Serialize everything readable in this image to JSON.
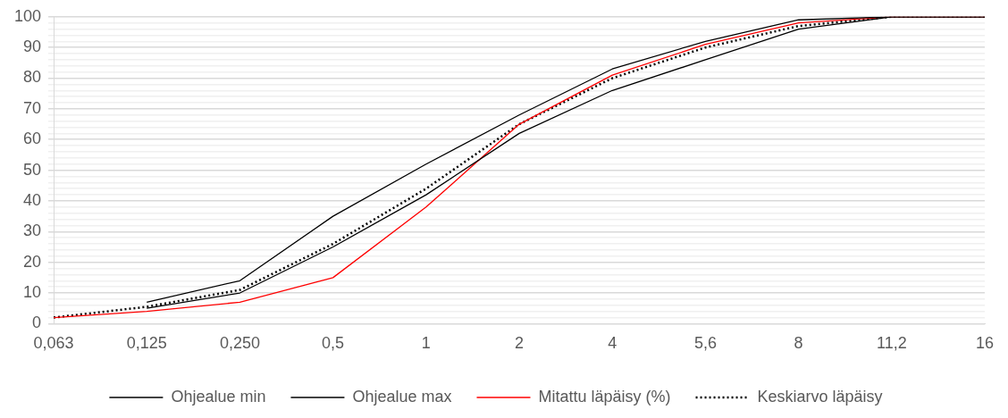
{
  "chart_data": {
    "type": "line",
    "categories": [
      "0,063",
      "0,125",
      "0,250",
      "0,5",
      "1",
      "2",
      "4",
      "5,6",
      "8",
      "11,2",
      "16"
    ],
    "series": [
      {
        "name": "Ohjealue min",
        "color": "#000000",
        "line_style": "solid",
        "values": [
          null,
          5,
          10,
          25,
          42,
          62,
          76,
          86,
          96,
          100,
          100
        ]
      },
      {
        "name": "Ohjealue max",
        "color": "#000000",
        "line_style": "solid",
        "values": [
          null,
          7,
          14,
          35,
          52,
          68,
          83,
          92,
          99,
          100,
          100
        ]
      },
      {
        "name": "Mitattu läpäisy (%)",
        "color": "#ff0000",
        "line_style": "solid",
        "values": [
          2,
          4,
          7,
          15,
          38,
          65,
          81,
          91,
          98,
          100,
          100
        ]
      },
      {
        "name": "Keskiarvo läpäisy",
        "color": "#000000",
        "line_style": "dotted",
        "values": [
          2,
          5.5,
          11,
          26,
          44,
          65,
          80,
          90,
          97,
          100,
          100
        ]
      }
    ],
    "ylim": [
      0,
      100
    ],
    "yticks": [
      0,
      {
        "value": 2,
        "label": null
      },
      {
        "value": 4,
        "label": null
      },
      {
        "value": 6,
        "label": null
      },
      {
        "value": 8,
        "label": null
      },
      10,
      {
        "value": 12,
        "label": null
      },
      {
        "value": 14,
        "label": null
      },
      {
        "value": 16,
        "label": null
      },
      {
        "value": 18,
        "label": null
      },
      20,
      {
        "value": 22,
        "label": null
      },
      {
        "value": 24,
        "label": null
      },
      {
        "value": 26,
        "label": null
      },
      {
        "value": 28,
        "label": null
      },
      30,
      {
        "value": 32,
        "label": null
      },
      {
        "value": 34,
        "label": null
      },
      {
        "value": 36,
        "label": null
      },
      {
        "value": 38,
        "label": null
      },
      40,
      {
        "value": 42,
        "label": null
      },
      {
        "value": 44,
        "label": null
      },
      {
        "value": 46,
        "label": null
      },
      {
        "value": 48,
        "label": null
      },
      50,
      {
        "value": 52,
        "label": null
      },
      {
        "value": 54,
        "label": null
      },
      {
        "value": 56,
        "label": null
      },
      {
        "value": 58,
        "label": null
      },
      60,
      {
        "value": 62,
        "label": null
      },
      {
        "value": 64,
        "label": null
      },
      {
        "value": 66,
        "label": null
      },
      {
        "value": 68,
        "label": null
      },
      70,
      {
        "value": 72,
        "label": null
      },
      {
        "value": 74,
        "label": null
      },
      {
        "value": 76,
        "label": null
      },
      {
        "value": 78,
        "label": null
      },
      80,
      {
        "value": 82,
        "label": null
      },
      {
        "value": 84,
        "label": null
      },
      {
        "value": 86,
        "label": null
      },
      {
        "value": 88,
        "label": null
      },
      90,
      {
        "value": 92,
        "label": null
      },
      {
        "value": 94,
        "label": null
      },
      {
        "value": 96,
        "label": null
      },
      {
        "value": 98,
        "label": null
      },
      100
    ],
    "grid": "y",
    "legend": "bottom",
    "marker": "none"
  }
}
